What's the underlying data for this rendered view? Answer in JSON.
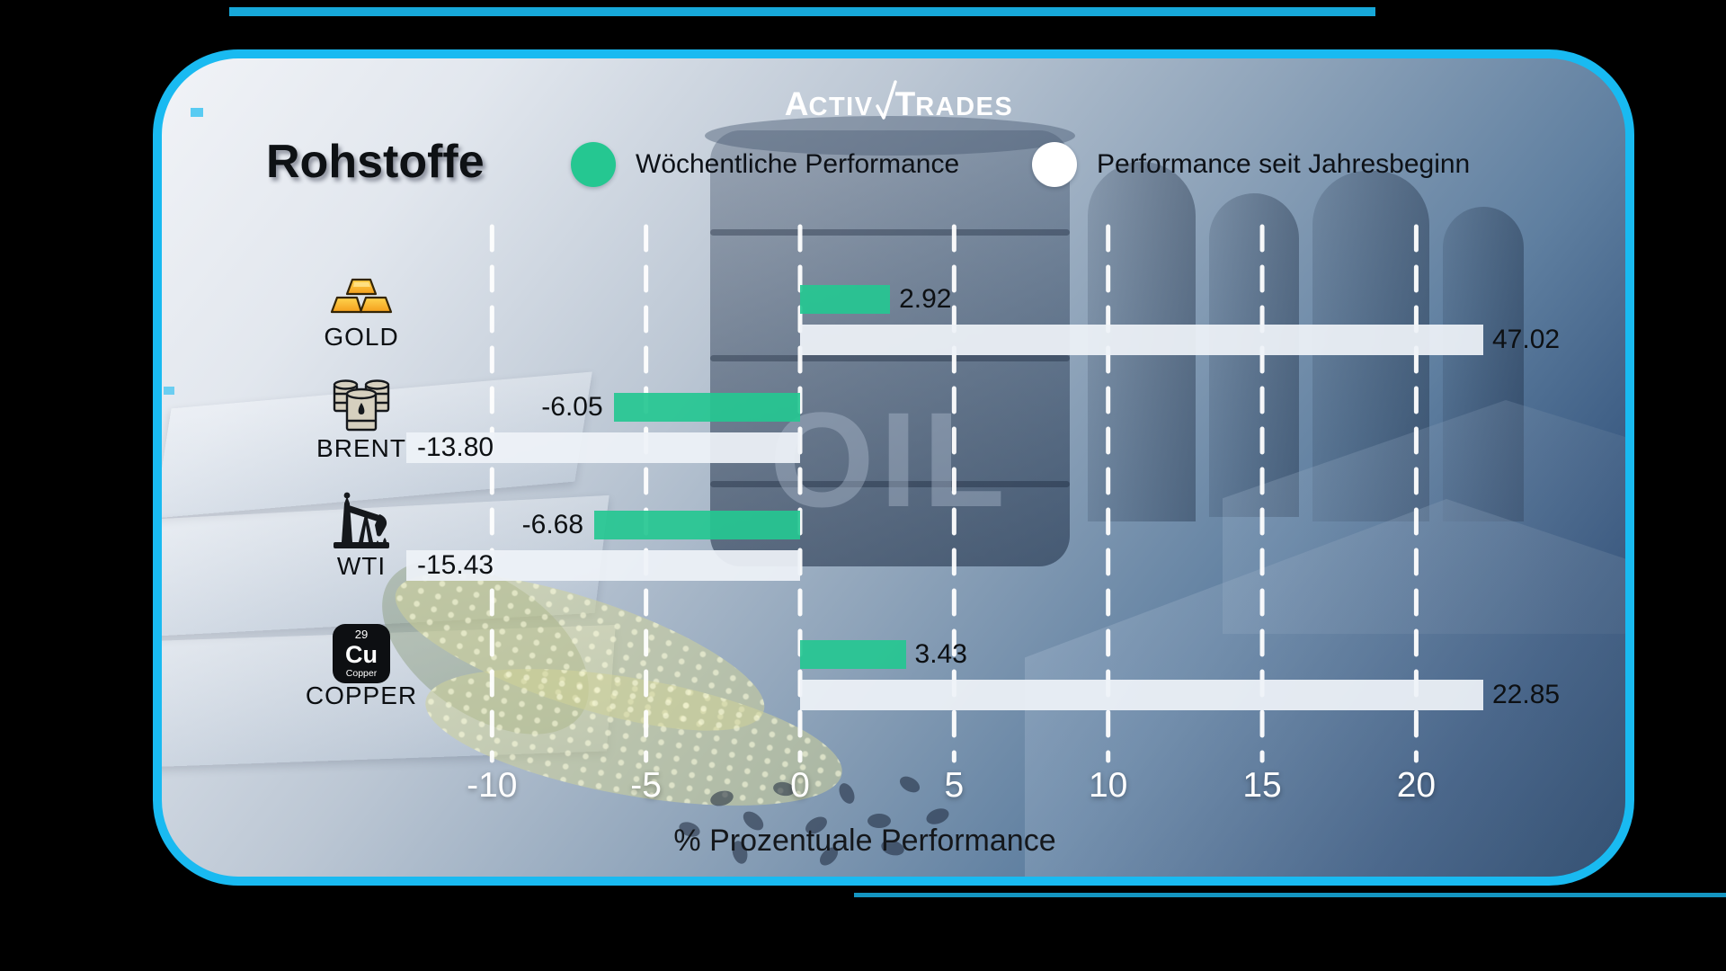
{
  "brand": {
    "name": "ActivTrades",
    "part1_initial": "A",
    "part1_rest": "CTIV",
    "part2_initial": "T",
    "part2_rest": "RADES"
  },
  "header": {
    "title": "Rohstoffe"
  },
  "legend": {
    "weekly": {
      "label": "Wöchentliche Performance",
      "color": "#25c791"
    },
    "ytd": {
      "label": "Performance seit Jahresbeginn",
      "color": "#ffffff"
    }
  },
  "chart_data": {
    "type": "bar",
    "orientation": "horizontal",
    "title": "Rohstoffe",
    "categories": [
      "GOLD",
      "BRENT",
      "WTI",
      "COPPER"
    ],
    "icons": [
      "gold-bars-icon",
      "oil-barrels-icon",
      "oil-pumpjack-icon",
      "copper-element-icon"
    ],
    "series": [
      {
        "name": "Wöchentliche Performance",
        "color": "#25c791",
        "values": [
          2.92,
          -6.05,
          -6.68,
          3.43
        ]
      },
      {
        "name": "Performance seit Jahresbeginn",
        "color": "#eef2f7",
        "values": [
          47.02,
          -13.8,
          -15.43,
          22.85
        ]
      }
    ],
    "xticks": [
      -10,
      -5,
      0,
      5,
      10,
      15,
      20
    ],
    "xlabel": "% Prozentuale Performance",
    "xlim": [
      -13.3,
      22.3
    ],
    "grid": "white-dashed-vertical",
    "legend_position": "top"
  },
  "copper_badge": {
    "atomic_number": "29",
    "symbol": "Cu",
    "element_name": "Copper"
  },
  "background": {
    "barrel_text": "OIL",
    "border_color": "#19baf1",
    "outside_color": "#000000"
  }
}
